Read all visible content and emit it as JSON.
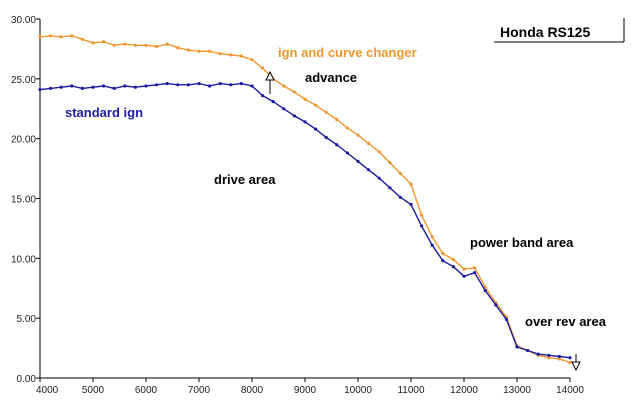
{
  "chart_data": {
    "type": "line",
    "title": "Honda RS125",
    "xlabel": "",
    "ylabel": "",
    "xlim": [
      4000,
      14000
    ],
    "ylim": [
      0,
      30
    ],
    "grid": false,
    "x_ticks": [
      "4000",
      "5000",
      "6000",
      "7000",
      "8000",
      "9000",
      "10000",
      "11000",
      "12000",
      "13000",
      "14000"
    ],
    "y_ticks": [
      "0.00",
      "5.00",
      "10.00",
      "15.00",
      "20.00",
      "25.00",
      "30.00"
    ],
    "series": [
      {
        "name": "ign and curve changer",
        "color": "#f0962d",
        "x": [
          4000,
          4200,
          4400,
          4600,
          4800,
          5000,
          5200,
          5400,
          5600,
          5800,
          6000,
          6200,
          6400,
          6600,
          6800,
          7000,
          7200,
          7400,
          7600,
          7800,
          8000,
          8200,
          8400,
          8600,
          8800,
          9000,
          9200,
          9400,
          9600,
          9800,
          10000,
          10200,
          10400,
          10600,
          10800,
          11000,
          11200,
          11400,
          11600,
          11800,
          12000,
          12200,
          12400,
          12600,
          12800,
          13000,
          13200,
          13400,
          13600,
          13800,
          14000
        ],
        "values": [
          28.5,
          28.6,
          28.5,
          28.6,
          28.3,
          28.0,
          28.1,
          27.8,
          27.9,
          27.8,
          27.8,
          27.7,
          27.9,
          27.6,
          27.4,
          27.3,
          27.3,
          27.1,
          27.0,
          26.9,
          26.6,
          25.9,
          25.0,
          24.4,
          23.9,
          23.3,
          22.8,
          22.2,
          21.6,
          20.9,
          20.3,
          19.6,
          18.9,
          18.0,
          17.1,
          16.2,
          13.6,
          11.8,
          10.4,
          9.9,
          9.1,
          9.2,
          7.6,
          6.3,
          5.1,
          2.7,
          2.3,
          1.9,
          1.7,
          1.6,
          1.3
        ]
      },
      {
        "name": "standard ign",
        "color": "#1c1ca0",
        "x": [
          4000,
          4200,
          4400,
          4600,
          4800,
          5000,
          5200,
          5400,
          5600,
          5800,
          6000,
          6200,
          6400,
          6600,
          6800,
          7000,
          7200,
          7400,
          7600,
          7800,
          8000,
          8200,
          8400,
          8600,
          8800,
          9000,
          9200,
          9400,
          9600,
          9800,
          10000,
          10200,
          10400,
          10600,
          10800,
          11000,
          11200,
          11400,
          11600,
          11800,
          12000,
          12200,
          12400,
          12600,
          12800,
          13000,
          13200,
          13400,
          13600,
          13800,
          14000
        ],
        "values": [
          24.1,
          24.2,
          24.3,
          24.4,
          24.2,
          24.3,
          24.4,
          24.2,
          24.4,
          24.3,
          24.4,
          24.5,
          24.6,
          24.5,
          24.5,
          24.6,
          24.4,
          24.6,
          24.5,
          24.6,
          24.4,
          23.6,
          23.1,
          22.5,
          21.9,
          21.4,
          20.8,
          20.1,
          19.5,
          18.8,
          18.1,
          17.4,
          16.7,
          15.9,
          15.1,
          14.5,
          12.7,
          11.1,
          9.8,
          9.3,
          8.5,
          8.8,
          7.3,
          6.1,
          4.9,
          2.6,
          2.3,
          2.0,
          1.9,
          1.8,
          1.7
        ]
      }
    ],
    "annotations": {
      "series_label_orange": "ign and curve changer",
      "series_label_blue": "standard ign",
      "advance": "advance",
      "drive_area": "drive area",
      "power_band_area": "power band area",
      "over_rev_area": "over rev area"
    }
  }
}
